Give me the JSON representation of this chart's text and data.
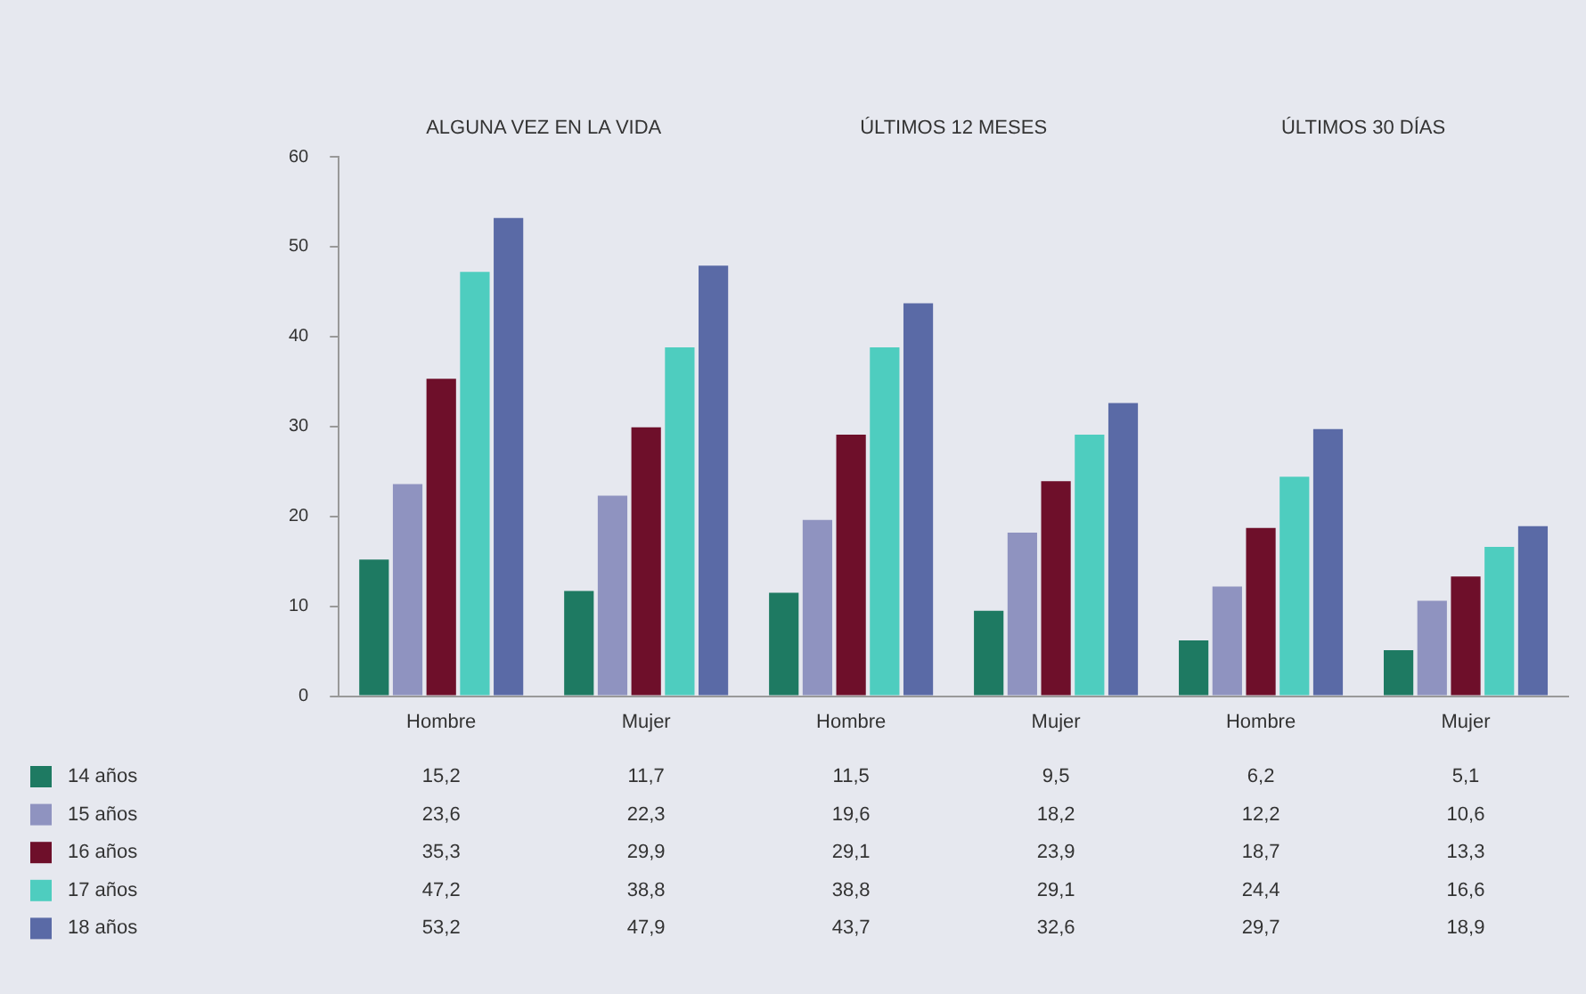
{
  "chart_data": {
    "type": "bar",
    "categories": [
      "Hombre",
      "Mujer",
      "Hombre",
      "Mujer",
      "Hombre",
      "Mujer"
    ],
    "series": [
      {
        "name": "14 años",
        "color": "#1e7a62",
        "values": [
          15.2,
          11.7,
          11.5,
          9.5,
          6.2,
          5.1
        ],
        "value_labels": [
          "15,2",
          "11,7",
          "11,5",
          "9,5",
          "6,2",
          "5,1"
        ]
      },
      {
        "name": "15 años",
        "color": "#8f93c0",
        "values": [
          23.6,
          22.3,
          19.6,
          18.2,
          12.2,
          10.6
        ],
        "value_labels": [
          "23,6",
          "22,3",
          "19,6",
          "18,2",
          "12,2",
          "10,6"
        ]
      },
      {
        "name": "16 años",
        "color": "#6e0f2a",
        "values": [
          35.3,
          29.9,
          29.1,
          23.9,
          18.7,
          13.3
        ],
        "value_labels": [
          "35,3",
          "29,9",
          "29,1",
          "23,9",
          "18,7",
          "13,3"
        ]
      },
      {
        "name": "17 años",
        "color": "#4ecdbf",
        "values": [
          47.2,
          38.8,
          38.8,
          29.1,
          24.4,
          16.6
        ],
        "value_labels": [
          "47,2",
          "38,8",
          "38,8",
          "29,1",
          "24,4",
          "16,6"
        ]
      },
      {
        "name": "18 años",
        "color": "#5a6aa6",
        "values": [
          53.2,
          47.9,
          43.7,
          32.6,
          29.7,
          18.9
        ],
        "value_labels": [
          "53,2",
          "47,9",
          "43,7",
          "32,6",
          "29,7",
          "18,9"
        ]
      }
    ],
    "annotations": [
      "ALGUNA VEZ EN LA VIDA",
      "ÚLTIMOS 12 MESES",
      "ÚLTIMOS 30 DÍAS"
    ],
    "ylim": [
      0,
      60
    ],
    "yticks": [
      0,
      10,
      20,
      30,
      40,
      50,
      60
    ],
    "grid": false,
    "legend": "bottom"
  }
}
